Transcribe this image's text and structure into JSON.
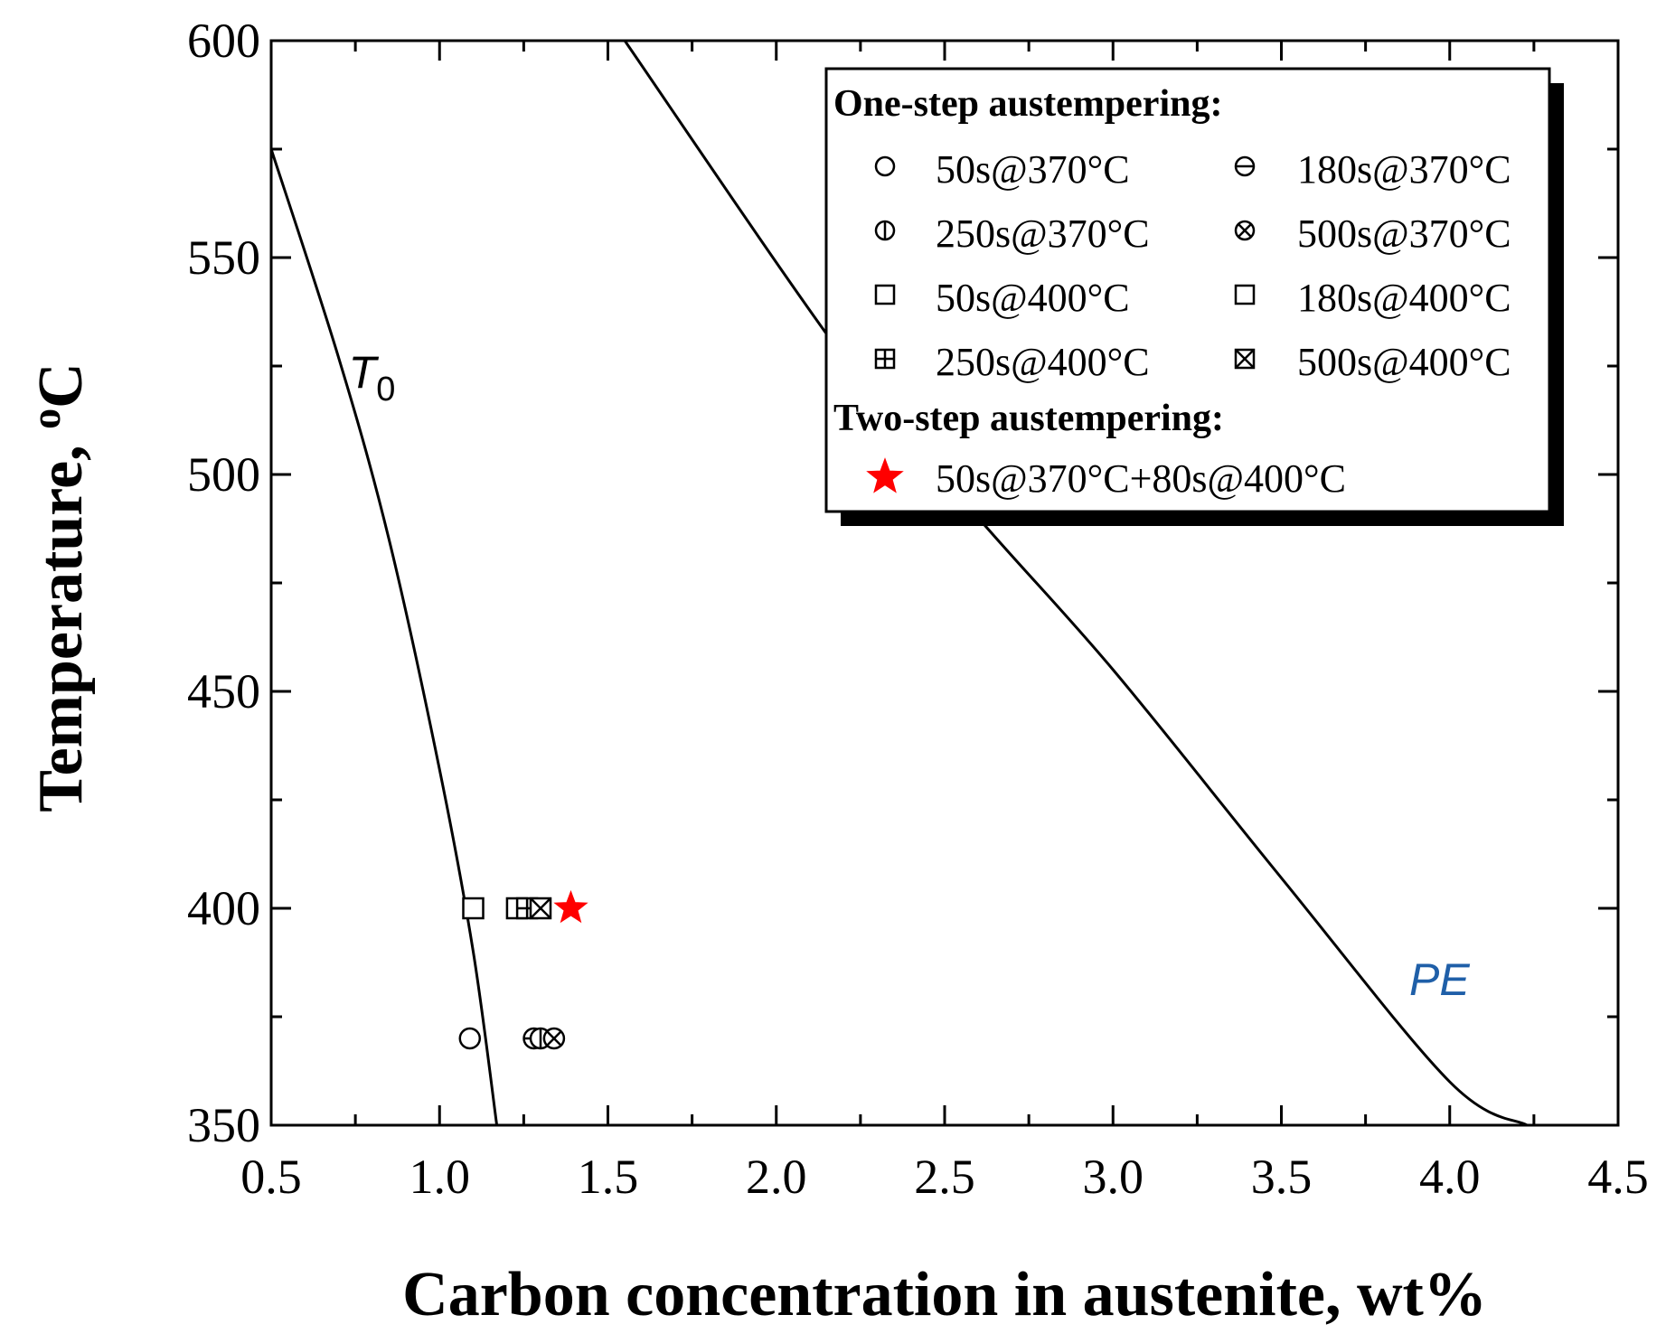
{
  "chart_data": {
    "type": "scatter",
    "xlabel": "Carbon concentration in austenite, wt%",
    "ylabel": "Temperature, ",
    "ylabel_unit_sup": "o",
    "ylabel_unit": "C",
    "xlim": [
      0.5,
      4.5
    ],
    "ylim": [
      350,
      600
    ],
    "xticks": [
      "0.5",
      "1.0",
      "1.5",
      "2.0",
      "2.5",
      "3.0",
      "3.5",
      "4.0",
      "4.5"
    ],
    "yticks": [
      "350",
      "400",
      "450",
      "500",
      "550",
      "600"
    ],
    "curves": [
      {
        "name": "T",
        "subscript": "0",
        "color": "#000000",
        "label_color": "#000000",
        "points": [
          [
            0.5,
            575
          ],
          [
            0.7,
            527
          ],
          [
            0.85,
            485
          ],
          [
            1.0,
            432
          ],
          [
            1.1,
            390
          ],
          [
            1.17,
            350
          ]
        ]
      },
      {
        "name": "PE",
        "subscript": "",
        "color": "#000000",
        "label_color": "#1f5fa8",
        "points": [
          [
            1.55,
            600
          ],
          [
            2.2,
            527
          ],
          [
            2.6,
            490
          ],
          [
            3.0,
            455
          ],
          [
            3.5,
            407
          ],
          [
            4.0,
            360
          ],
          [
            4.23,
            350
          ]
        ]
      }
    ],
    "legend": {
      "position": "top-right",
      "groups": [
        {
          "heading": "One-step  austempering:",
          "entries": [
            {
              "label": "50s@370°C",
              "marker": "circle",
              "color": "#000000"
            },
            {
              "label": "180s@370°C",
              "marker": "circle-hline",
              "color": "#000000"
            },
            {
              "label": "250s@370°C",
              "marker": "circle-vline",
              "color": "#000000"
            },
            {
              "label": "500s@370°C",
              "marker": "circle-x",
              "color": "#000000"
            },
            {
              "label": "50s@400°C",
              "marker": "square",
              "color": "#000000"
            },
            {
              "label": "180s@400°C",
              "marker": "square",
              "color": "#000000"
            },
            {
              "label": "250s@400°C",
              "marker": "square-plus",
              "color": "#000000"
            },
            {
              "label": "500s@400°C",
              "marker": "square-x",
              "color": "#000000"
            }
          ]
        },
        {
          "heading": "Two-step  austempering:",
          "entries": [
            {
              "label": "50s@370°C+80s@400°C",
              "marker": "star",
              "color": "#ff0000"
            }
          ]
        }
      ]
    },
    "series": [
      {
        "name": "50s@370°C",
        "marker": "circle",
        "color": "#000000",
        "x": 1.09,
        "y": 370
      },
      {
        "name": "180s@370°C",
        "marker": "circle-hline",
        "color": "#000000",
        "x": 1.28,
        "y": 370
      },
      {
        "name": "250s@370°C",
        "marker": "circle-vline",
        "color": "#000000",
        "x": 1.3,
        "y": 370
      },
      {
        "name": "500s@370°C",
        "marker": "circle-x",
        "color": "#000000",
        "x": 1.34,
        "y": 370
      },
      {
        "name": "50s@400°C",
        "marker": "square",
        "color": "#000000",
        "x": 1.1,
        "y": 400
      },
      {
        "name": "180s@400°C",
        "marker": "square",
        "color": "#000000",
        "x": 1.23,
        "y": 400
      },
      {
        "name": "250s@400°C",
        "marker": "square-plus",
        "color": "#000000",
        "x": 1.26,
        "y": 400
      },
      {
        "name": "500s@400°C",
        "marker": "square-x",
        "color": "#000000",
        "x": 1.3,
        "y": 400
      },
      {
        "name": "50s@370°C+80s@400°C",
        "marker": "star",
        "color": "#ff0000",
        "x": 1.39,
        "y": 400
      }
    ]
  }
}
